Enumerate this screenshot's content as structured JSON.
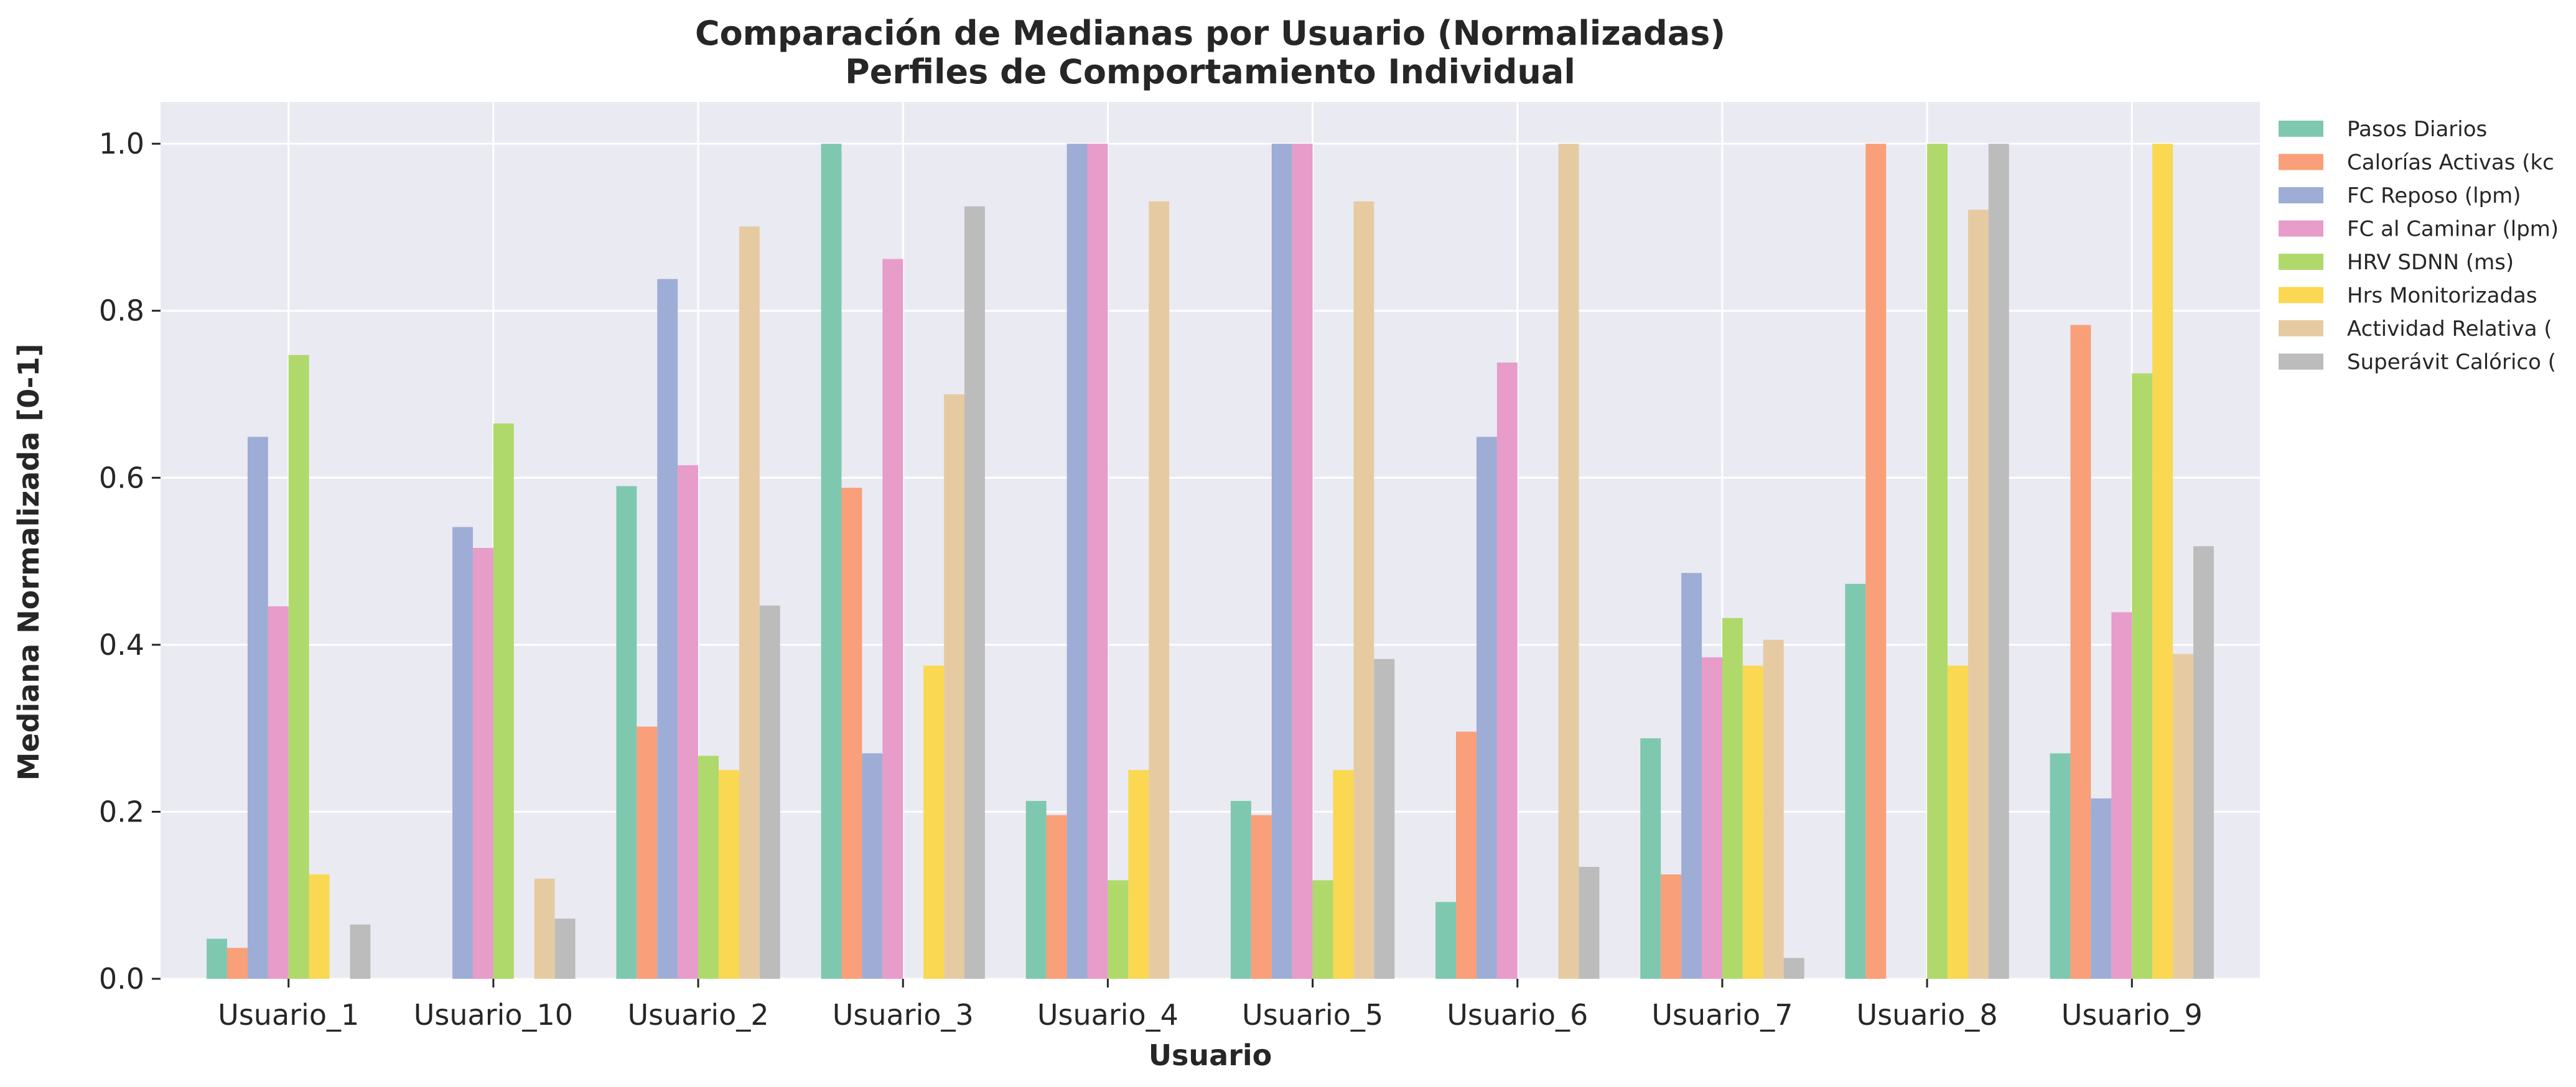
{
  "chart_data": {
    "type": "bar",
    "title": "Comparación de Medianas por Usuario (Normalizadas)",
    "subtitle": "Perfiles de Comportamiento Individual",
    "xlabel": "Usuario",
    "ylabel": "Mediana Normalizada [0-1]",
    "ylim": [
      0,
      1.05
    ],
    "yticks": [
      0.0,
      0.2,
      0.4,
      0.6,
      0.8,
      1.0
    ],
    "ytick_labels": [
      "0.0",
      "0.2",
      "0.4",
      "0.6",
      "0.8",
      "1.0"
    ],
    "grid": true,
    "legend_position": "outside-top-right",
    "categories": [
      "Usuario_1",
      "Usuario_10",
      "Usuario_2",
      "Usuario_3",
      "Usuario_4",
      "Usuario_5",
      "Usuario_6",
      "Usuario_7",
      "Usuario_8",
      "Usuario_9"
    ],
    "series": [
      {
        "name": "Pasos Diarios",
        "color": "#7fc8b0",
        "values": [
          0.048,
          0.0,
          0.59,
          1.0,
          0.213,
          0.213,
          0.092,
          0.288,
          0.473,
          0.27
        ]
      },
      {
        "name": "Calorías Activas (kc",
        "color": "#f99f79",
        "values": [
          0.037,
          0.0,
          0.302,
          0.588,
          0.196,
          0.196,
          0.296,
          0.125,
          1.0,
          0.783
        ]
      },
      {
        "name": "FC Reposo (lpm)",
        "color": "#9eadd5",
        "values": [
          0.649,
          0.541,
          0.838,
          0.27,
          1.0,
          1.0,
          0.649,
          0.486,
          0.0,
          0.216
        ]
      },
      {
        "name": "FC al Caminar (lpm)",
        "color": "#e79cca",
        "values": [
          0.446,
          0.516,
          0.615,
          0.862,
          1.0,
          1.0,
          0.738,
          0.385,
          0.0,
          0.439
        ]
      },
      {
        "name": "HRV SDNN (ms)",
        "color": "#afd96a",
        "values": [
          0.747,
          0.665,
          0.267,
          0.0,
          0.118,
          0.118,
          0.0,
          0.432,
          1.0,
          0.725
        ]
      },
      {
        "name": "Hrs Monitorizadas",
        "color": "#fad851",
        "values": [
          0.125,
          0.0,
          0.25,
          0.375,
          0.25,
          0.25,
          0.0,
          0.375,
          0.375,
          1.0
        ]
      },
      {
        "name": "Actividad Relativa (",
        "color": "#e6cba2",
        "values": [
          0.0,
          0.12,
          0.901,
          0.7,
          0.931,
          0.931,
          1.0,
          0.406,
          0.921,
          0.389
        ]
      },
      {
        "name": "Superávit Calórico (",
        "color": "#bcbcbc",
        "values": [
          0.065,
          0.072,
          0.447,
          0.925,
          0.0,
          0.383,
          0.134,
          0.025,
          1.0,
          0.518
        ]
      }
    ]
  },
  "style": {
    "plot_background": "#eaeaf2",
    "grid_color": "#ffffff",
    "text_color": "#262626"
  }
}
